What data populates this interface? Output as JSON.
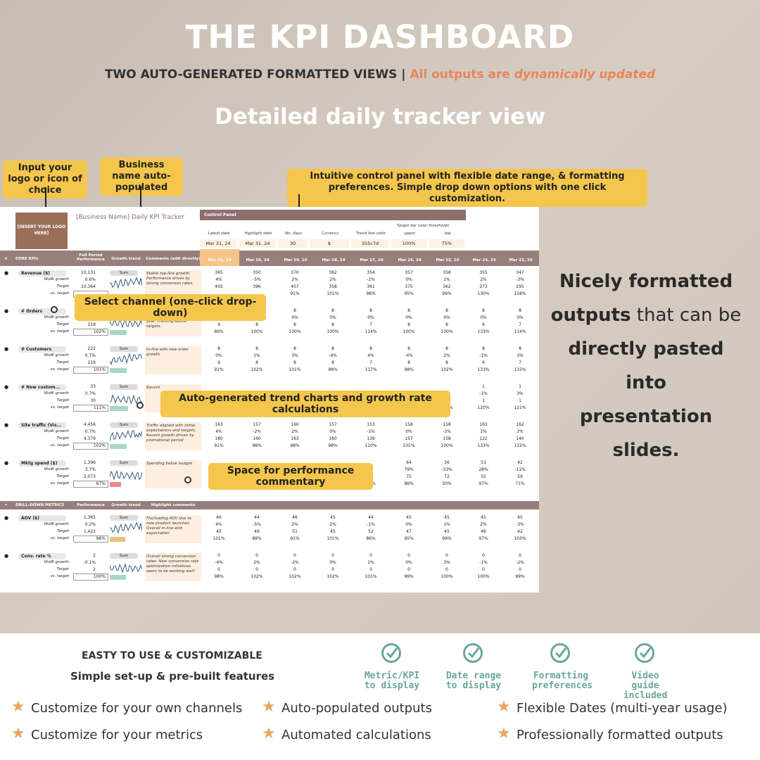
{
  "header": {
    "title": "THE KPI DASHBOARD",
    "subtitle_dark": "TWO AUTO-GENERATED FORMATTED  VIEWS |",
    "subtitle_orange": "All outputs are",
    "subtitle_italic": "dynamically updated",
    "view_title": "Detailed daily tracker view"
  },
  "callouts": {
    "logo": "Input your logo or icon of choice",
    "business": "Business name auto-populated",
    "control_panel": "Intuitive control panel with flexible date range, & formatting preferences. Simple drop down options with one click customization.",
    "channel": "Select channel (one-click drop-down)",
    "trend": "Auto-generated trend charts and growth rate calculations",
    "commentary": "Space for performance commentary"
  },
  "sheet": {
    "logo_placeholder": "[INSERT YOUR LOGO HERE]",
    "business_name": "[Business Name] Daily KPI Tracker",
    "control_panel": {
      "title": "Control Panel",
      "thresholds_label": "Target bar color thresholds",
      "labels": [
        "Latest date",
        "Highlight date",
        "No. days",
        "Currency",
        "Trend line color",
        "upper",
        "low"
      ],
      "values": [
        "Mar 31, 24",
        "Mar 31, 24",
        "30",
        "$",
        "355c7d",
        "100%",
        "75%"
      ]
    },
    "header_row": {
      "core": "CORE KPIs",
      "full_period": "Full Period Performance",
      "growth_trend": "Growth trend",
      "comments": "Comments (edit directly)",
      "dates": [
        "Mar 31, 24",
        "Mar 30, 24",
        "Mar 29, 24",
        "Mar 28, 24",
        "Mar 27, 24",
        "Mar 26, 24",
        "Mar 25, 24",
        "Mar 24, 24",
        "Mar 23, 24"
      ]
    },
    "row_labels": [
      "WoW growth",
      "Target",
      "vs. target"
    ],
    "sum_label": "Sum",
    "kpis": [
      {
        "name": "Revenue ($)",
        "vals": [
          "10,131",
          "0.6%",
          "10,364",
          ""
        ],
        "comment": "Stable top-line growth. Performance drives by strong conversion rates.",
        "daily": [
          [
            "365",
            "350",
            "370",
            "362",
            "354",
            "357",
            "358",
            "355",
            "347"
          ],
          [
            "4%",
            "-5%",
            "2%",
            "2%",
            "-1%",
            "0%",
            "1%",
            "2%",
            "-3%"
          ],
          [
            "405",
            "396",
            "407",
            "358",
            "361",
            "375",
            "362",
            "273",
            "295"
          ],
          [
            "",
            "",
            "91%",
            "101%",
            "98%",
            "95%",
            "99%",
            "130%",
            "118%"
          ]
        ]
      },
      {
        "name": "# Orders",
        "vals": [
          "223",
          "0.6%",
          "219",
          "102%"
        ],
        "comment": "Order growth acceleration from second quarter this year. Tracking above targets.",
        "daily": [
          [
            "8",
            "8",
            "8",
            "8",
            "8",
            "8",
            "8",
            "8",
            "8"
          ],
          [
            "0%",
            "0%",
            "0%",
            "0%",
            "0%",
            "0%",
            "0%",
            "0%",
            "0%"
          ],
          [
            "9",
            "8",
            "8",
            "8",
            "7",
            "8",
            "8",
            "6",
            "7"
          ],
          [
            "89%",
            "100%",
            "100%",
            "100%",
            "114%",
            "100%",
            "100%",
            "133%",
            "114%"
          ]
        ]
      },
      {
        "name": "# Customers",
        "vals": [
          "222",
          "0.7%",
          "219",
          "101%"
        ],
        "comment": "In-line with new order growth",
        "daily": [
          [
            "8",
            "8",
            "8",
            "8",
            "8",
            "8",
            "8",
            "8",
            "8"
          ],
          [
            "0%",
            "1%",
            "3%",
            "-4%",
            "4%",
            "-4%",
            "2%",
            "-1%",
            "3%"
          ],
          [
            "9",
            "8",
            "8",
            "8",
            "7",
            "8",
            "8",
            "6",
            "7"
          ],
          [
            "91%",
            "102%",
            "101%",
            "98%",
            "117%",
            "98%",
            "102%",
            "133%",
            "115%"
          ]
        ]
      },
      {
        "name": "# New custom...",
        "vals": [
          "33",
          "0.7%",
          "30",
          "111%"
        ],
        "comment": "Recent",
        "daily": [
          [
            "",
            "",
            "",
            "",
            "",
            "",
            "",
            "1",
            "1"
          ],
          [
            "",
            "",
            "",
            "",
            "",
            "",
            "",
            "-1%",
            "3%"
          ],
          [
            "",
            "",
            "",
            "",
            "",
            "",
            "",
            "1",
            "1"
          ],
          [
            "122%",
            "122%",
            "121%",
            "118%",
            "122%",
            "118%",
            "122%",
            "120%",
            "121%"
          ]
        ]
      },
      {
        "name": "Site traffic (Vis...",
        "vals": [
          "4,456",
          "0.7%",
          "4,379",
          "102%"
        ],
        "comment": "Traffic aligned with initial expectations and targets. Recent growth driven by promotional period",
        "daily": [
          [
            "163",
            "157",
            "160",
            "157",
            "153",
            "158",
            "158",
            "163",
            "162"
          ],
          [
            "4%",
            "-2%",
            "2%",
            "0%",
            "-1%",
            "0%",
            "-3%",
            "1%",
            "2%"
          ],
          [
            "180",
            "160",
            "163",
            "160",
            "139",
            "157",
            "158",
            "122",
            "140"
          ],
          [
            "91%",
            "98%",
            "98%",
            "98%",
            "110%",
            "101%",
            "100%",
            "133%",
            "115%"
          ]
        ]
      },
      {
        "name": "Mktg spend ($)",
        "vals": [
          "1,396",
          "3.7%",
          "2,073",
          "67%"
        ],
        "comment": "Spending below budget",
        "daily": [
          [
            "",
            "",
            "",
            "",
            "",
            "64",
            "36",
            "53",
            "42"
          ],
          [
            "",
            "",
            "",
            "",
            "5",
            "79%",
            "-33%",
            "28%",
            "-11%"
          ],
          [
            "81",
            "79",
            "81",
            "72",
            "72",
            "75",
            "72",
            "55",
            "59"
          ],
          [
            "54%",
            "80%",
            "45%",
            "71%",
            "88%",
            "86%",
            "50%",
            "97%",
            "71%"
          ]
        ]
      }
    ],
    "drill_header": {
      "label": "DRILL-DOWN METRICS",
      "performance": "Performance",
      "growth_trend": "Growth trend",
      "comments": "Highlight comments"
    },
    "drill": [
      {
        "name": "AOV ($)",
        "vals": [
          "1,365",
          "0.2%",
          "1,422",
          "96%"
        ],
        "comment": "Fluctuating AOV due to new product launches. Overall in-line with expectation",
        "daily": [
          [
            "46",
            "44",
            "46",
            "45",
            "44",
            "45",
            "45",
            "45",
            "45"
          ],
          [
            "4%",
            "-5%",
            "2%",
            "2%",
            "-1%",
            "0%",
            "1%",
            "2%",
            "-3%"
          ],
          [
            "45",
            "49",
            "51",
            "45",
            "52",
            "47",
            "45",
            "46",
            "42"
          ],
          [
            "101%",
            "88%",
            "91%",
            "101%",
            "86%",
            "95%",
            "99%",
            "97%",
            "103%"
          ]
        ]
      },
      {
        "name": "Conv. rate %",
        "vals": [
          "2",
          "-0.1%",
          "2",
          "100%"
        ],
        "comment": "Overall strong conversion rates. New conversion rate optimization initiatives seem to be working well!",
        "daily": [
          [
            "0",
            "0",
            "0",
            "0",
            "0",
            "0",
            "0",
            "0",
            "0"
          ],
          [
            "-4%",
            "2%",
            "-2%",
            "0%",
            "1%",
            "0%",
            "3%",
            "-1%",
            "-2%"
          ],
          [
            "0",
            "0",
            "0",
            "0",
            "0",
            "0",
            "0",
            "0",
            "0"
          ],
          [
            "98%",
            "102%",
            "102%",
            "102%",
            "101%",
            "99%",
            "100%",
            "100%",
            "99%"
          ]
        ]
      }
    ]
  },
  "right_text": {
    "l1": "Nicely formatted",
    "l2a": "outputs",
    "l2b": " that can be",
    "l3": "directly pasted into",
    "l4": "presentation slides."
  },
  "bottom": {
    "heading1": "EASTY TO USE & CUSTOMIZABLE",
    "heading2": "Simple set-up & pre-built features",
    "features": [
      "Metric/KPI to display",
      "Date range to display",
      "Formatting preferences",
      "Video guide included"
    ],
    "bullets": [
      "Customize for your own channels",
      "Auto-populated outputs",
      "Flexible Dates (multi-year usage)",
      "Customize for your metrics",
      "Automated calculations",
      "Professionally formatted outputs"
    ]
  },
  "colors": {
    "accent_orange": "#e8855a",
    "callout": "#f4c64c",
    "header_bar": "#96807c",
    "check_green": "#6aa79a"
  }
}
